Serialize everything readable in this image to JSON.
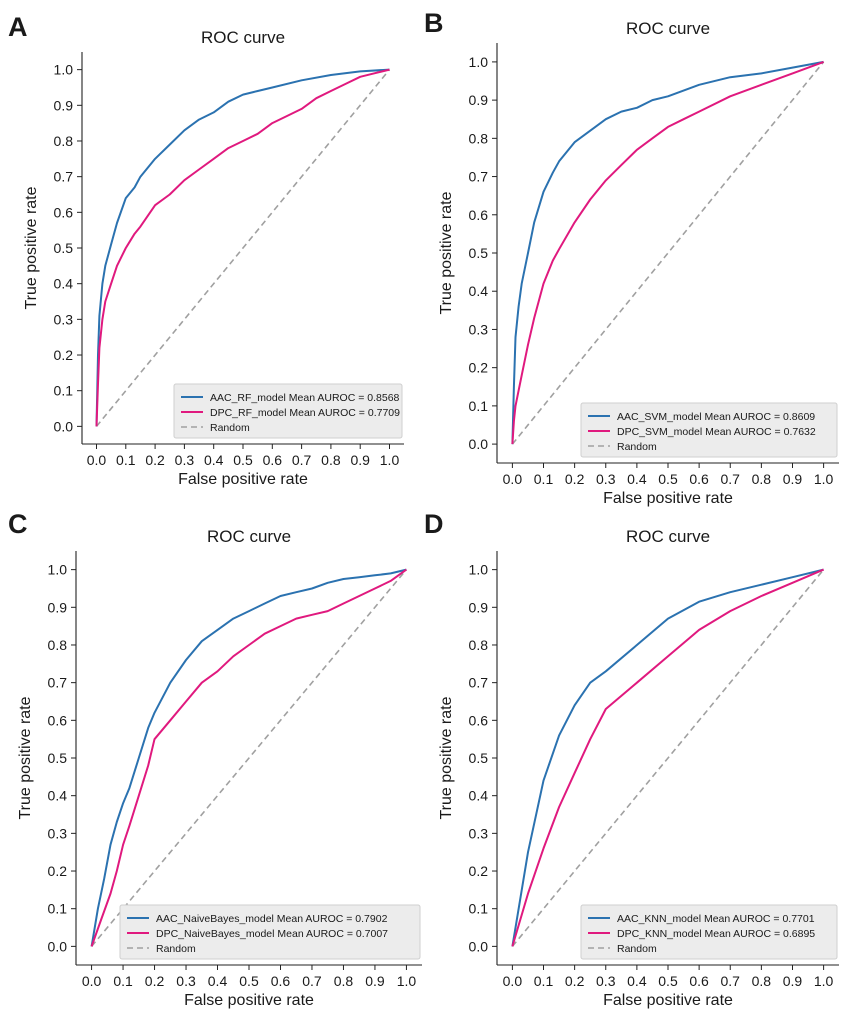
{
  "chart_data": [
    {
      "panel": "A",
      "type": "line",
      "title": "ROC curve",
      "xlabel": "False positive rate",
      "ylabel": "True positive rate",
      "xlim": [
        0,
        1
      ],
      "ylim": [
        0,
        1
      ],
      "grid": false,
      "legend": "lower-right",
      "x_ticks": [
        "0.0",
        "0.1",
        "0.2",
        "0.3",
        "0.4",
        "0.5",
        "0.6",
        "0.7",
        "0.8",
        "0.9",
        "1.0"
      ],
      "y_ticks": [
        "0.0",
        "0.1",
        "0.2",
        "0.3",
        "0.4",
        "0.5",
        "0.6",
        "0.7",
        "0.8",
        "0.9",
        "1.0"
      ],
      "series": [
        {
          "name": "AAC_RF_model Mean AUROC = 0.8568",
          "color": "#2b72b0",
          "x": [
            0,
            0.005,
            0.01,
            0.02,
            0.03,
            0.05,
            0.07,
            0.1,
            0.13,
            0.15,
            0.2,
            0.25,
            0.3,
            0.35,
            0.4,
            0.45,
            0.5,
            0.55,
            0.6,
            0.7,
            0.8,
            0.9,
            1.0
          ],
          "y": [
            0,
            0.2,
            0.31,
            0.4,
            0.45,
            0.51,
            0.57,
            0.64,
            0.67,
            0.7,
            0.75,
            0.79,
            0.83,
            0.86,
            0.88,
            0.91,
            0.93,
            0.94,
            0.95,
            0.97,
            0.985,
            0.995,
            1.0
          ]
        },
        {
          "name": "DPC_RF_model Mean AUROC = 0.7709",
          "color": "#e0197e",
          "x": [
            0,
            0.005,
            0.01,
            0.02,
            0.03,
            0.05,
            0.07,
            0.1,
            0.13,
            0.15,
            0.2,
            0.25,
            0.3,
            0.35,
            0.4,
            0.45,
            0.5,
            0.55,
            0.6,
            0.65,
            0.7,
            0.75,
            0.8,
            0.85,
            0.9,
            0.95,
            1.0
          ],
          "y": [
            0,
            0.12,
            0.22,
            0.3,
            0.35,
            0.4,
            0.45,
            0.5,
            0.54,
            0.56,
            0.62,
            0.65,
            0.69,
            0.72,
            0.75,
            0.78,
            0.8,
            0.82,
            0.85,
            0.87,
            0.89,
            0.92,
            0.94,
            0.96,
            0.98,
            0.99,
            1.0
          ]
        },
        {
          "name": "Random",
          "color": "#a0a0a0",
          "dashed": true,
          "x": [
            0,
            1
          ],
          "y": [
            0,
            1
          ]
        }
      ]
    },
    {
      "panel": "B",
      "type": "line",
      "title": "ROC curve",
      "xlabel": "False positive rate",
      "ylabel": "True positive rate",
      "xlim": [
        0,
        1
      ],
      "ylim": [
        0,
        1
      ],
      "grid": false,
      "legend": "lower-right",
      "x_ticks": [
        "0.0",
        "0.1",
        "0.2",
        "0.3",
        "0.4",
        "0.5",
        "0.6",
        "0.7",
        "0.8",
        "0.9",
        "1.0"
      ],
      "y_ticks": [
        "0.0",
        "0.1",
        "0.2",
        "0.3",
        "0.4",
        "0.5",
        "0.6",
        "0.7",
        "0.8",
        "0.9",
        "1.0"
      ],
      "series": [
        {
          "name": "AAC_SVM_model Mean AUROC = 0.8609",
          "color": "#2b72b0",
          "x": [
            0,
            0.005,
            0.01,
            0.02,
            0.03,
            0.05,
            0.07,
            0.1,
            0.13,
            0.15,
            0.2,
            0.25,
            0.3,
            0.35,
            0.4,
            0.45,
            0.5,
            0.6,
            0.7,
            0.8,
            0.9,
            1.0
          ],
          "y": [
            0,
            0.15,
            0.28,
            0.36,
            0.42,
            0.5,
            0.58,
            0.66,
            0.71,
            0.74,
            0.79,
            0.82,
            0.85,
            0.87,
            0.88,
            0.9,
            0.91,
            0.94,
            0.96,
            0.97,
            0.985,
            1.0
          ]
        },
        {
          "name": "DPC_SVM_model Mean AUROC = 0.7632",
          "color": "#e0197e",
          "x": [
            0,
            0.005,
            0.01,
            0.02,
            0.03,
            0.05,
            0.07,
            0.1,
            0.13,
            0.15,
            0.2,
            0.25,
            0.3,
            0.35,
            0.4,
            0.45,
            0.5,
            0.55,
            0.6,
            0.7,
            0.8,
            0.9,
            1.0
          ],
          "y": [
            0,
            0.06,
            0.1,
            0.14,
            0.18,
            0.26,
            0.33,
            0.42,
            0.48,
            0.51,
            0.58,
            0.64,
            0.69,
            0.73,
            0.77,
            0.8,
            0.83,
            0.85,
            0.87,
            0.91,
            0.94,
            0.97,
            1.0
          ]
        },
        {
          "name": "Random",
          "color": "#a0a0a0",
          "dashed": true,
          "x": [
            0,
            1
          ],
          "y": [
            0,
            1
          ]
        }
      ]
    },
    {
      "panel": "C",
      "type": "line",
      "title": "ROC curve",
      "xlabel": "False positive rate",
      "ylabel": "True positive rate",
      "xlim": [
        0,
        1
      ],
      "ylim": [
        0,
        1
      ],
      "grid": false,
      "legend": "lower-right",
      "x_ticks": [
        "0.0",
        "0.1",
        "0.2",
        "0.3",
        "0.4",
        "0.5",
        "0.6",
        "0.7",
        "0.8",
        "0.9",
        "1.0"
      ],
      "y_ticks": [
        "0.0",
        "0.1",
        "0.2",
        "0.3",
        "0.4",
        "0.5",
        "0.6",
        "0.7",
        "0.8",
        "0.9",
        "1.0"
      ],
      "series": [
        {
          "name": "AAC_NaiveBayes_model Mean AUROC = 0.7902",
          "color": "#2b72b0",
          "x": [
            0,
            0.02,
            0.04,
            0.06,
            0.08,
            0.1,
            0.12,
            0.15,
            0.18,
            0.2,
            0.25,
            0.3,
            0.35,
            0.4,
            0.45,
            0.5,
            0.55,
            0.6,
            0.65,
            0.7,
            0.75,
            0.8,
            0.85,
            0.9,
            0.95,
            1.0
          ],
          "y": [
            0,
            0.1,
            0.18,
            0.27,
            0.33,
            0.38,
            0.42,
            0.5,
            0.58,
            0.62,
            0.7,
            0.76,
            0.81,
            0.84,
            0.87,
            0.89,
            0.91,
            0.93,
            0.94,
            0.95,
            0.965,
            0.975,
            0.98,
            0.985,
            0.99,
            1.0
          ]
        },
        {
          "name": "DPC_NaiveBayes_model Mean AUROC = 0.7007",
          "color": "#e0197e",
          "x": [
            0,
            0.03,
            0.06,
            0.08,
            0.1,
            0.12,
            0.15,
            0.18,
            0.2,
            0.25,
            0.3,
            0.35,
            0.4,
            0.45,
            0.5,
            0.55,
            0.6,
            0.65,
            0.7,
            0.75,
            0.8,
            0.85,
            0.9,
            0.95,
            1.0
          ],
          "y": [
            0,
            0.07,
            0.14,
            0.2,
            0.27,
            0.32,
            0.4,
            0.48,
            0.55,
            0.6,
            0.65,
            0.7,
            0.73,
            0.77,
            0.8,
            0.83,
            0.85,
            0.87,
            0.88,
            0.89,
            0.91,
            0.93,
            0.95,
            0.97,
            1.0
          ]
        },
        {
          "name": "Random",
          "color": "#a0a0a0",
          "dashed": true,
          "x": [
            0,
            1
          ],
          "y": [
            0,
            1
          ]
        }
      ]
    },
    {
      "panel": "D",
      "type": "line",
      "title": "ROC curve",
      "xlabel": "False positive rate",
      "ylabel": "True positive rate",
      "xlim": [
        0,
        1
      ],
      "ylim": [
        0,
        1
      ],
      "grid": false,
      "legend": "lower-right",
      "x_ticks": [
        "0.0",
        "0.1",
        "0.2",
        "0.3",
        "0.4",
        "0.5",
        "0.6",
        "0.7",
        "0.8",
        "0.9",
        "1.0"
      ],
      "y_ticks": [
        "0.0",
        "0.1",
        "0.2",
        "0.3",
        "0.4",
        "0.5",
        "0.6",
        "0.7",
        "0.8",
        "0.9",
        "1.0"
      ],
      "series": [
        {
          "name": "AAC_KNN_model Mean AUROC = 0.7701",
          "color": "#2b72b0",
          "x": [
            0,
            0.05,
            0.1,
            0.15,
            0.2,
            0.25,
            0.3,
            0.4,
            0.5,
            0.6,
            0.7,
            0.8,
            0.9,
            1.0
          ],
          "y": [
            0,
            0.25,
            0.44,
            0.56,
            0.64,
            0.7,
            0.73,
            0.8,
            0.87,
            0.915,
            0.94,
            0.96,
            0.98,
            1.0
          ]
        },
        {
          "name": "DPC_KNN_model Mean AUROC = 0.6895",
          "color": "#e0197e",
          "x": [
            0,
            0.05,
            0.1,
            0.15,
            0.2,
            0.25,
            0.3,
            0.4,
            0.5,
            0.6,
            0.7,
            0.8,
            0.9,
            1.0
          ],
          "y": [
            0,
            0.14,
            0.26,
            0.37,
            0.46,
            0.55,
            0.63,
            0.7,
            0.77,
            0.84,
            0.89,
            0.93,
            0.965,
            1.0
          ]
        },
        {
          "name": "Random",
          "color": "#a0a0a0",
          "dashed": true,
          "x": [
            0,
            1
          ],
          "y": [
            0,
            1
          ]
        }
      ]
    }
  ]
}
